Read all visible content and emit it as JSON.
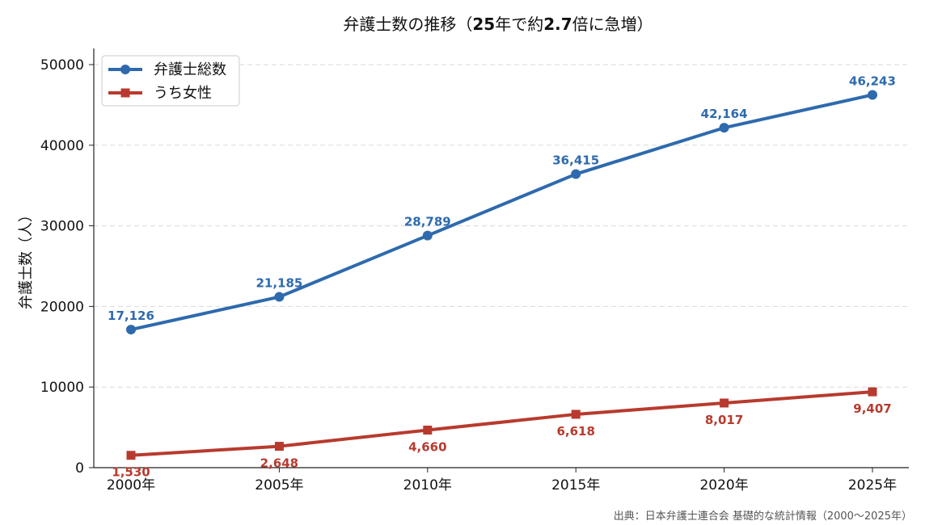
{
  "chart_data": {
    "type": "line",
    "title": "弁護士数の推移（25年で約2.7倍に急増）",
    "title_parts": [
      {
        "text": "弁護士数の推移（",
        "bold": false
      },
      {
        "text": "25",
        "bold": true
      },
      {
        "text": "年で約",
        "bold": false
      },
      {
        "text": "2.7",
        "bold": true
      },
      {
        "text": "倍に急増）",
        "bold": false
      }
    ],
    "xlabel": "",
    "ylabel": "弁護士数（人）",
    "categories": [
      "2000年",
      "2005年",
      "2010年",
      "2015年",
      "2020年",
      "2025年"
    ],
    "ylim": [
      0,
      52000
    ],
    "yticks": [
      0,
      10000,
      20000,
      30000,
      40000,
      50000
    ],
    "grid": "horizontal-dashed",
    "legend_position": "top-left",
    "series": [
      {
        "name": "弁護士総数",
        "values": [
          17126,
          21185,
          28789,
          36415,
          42164,
          46243
        ],
        "labels": [
          "17,126",
          "21,185",
          "28,789",
          "36,415",
          "42,164",
          "46,243"
        ],
        "color": "#2e6aad",
        "marker": "circle",
        "label_side": "above"
      },
      {
        "name": "うち女性",
        "values": [
          1530,
          2648,
          4660,
          6618,
          8017,
          9407
        ],
        "labels": [
          "1,530",
          "2,648",
          "4,660",
          "6,618",
          "8,017",
          "9,407"
        ],
        "color": "#b83a2e",
        "marker": "square",
        "label_side": "below"
      }
    ],
    "source": "出典：日本弁護士連合会 基礎的な統計情報（2000〜2025年）"
  }
}
